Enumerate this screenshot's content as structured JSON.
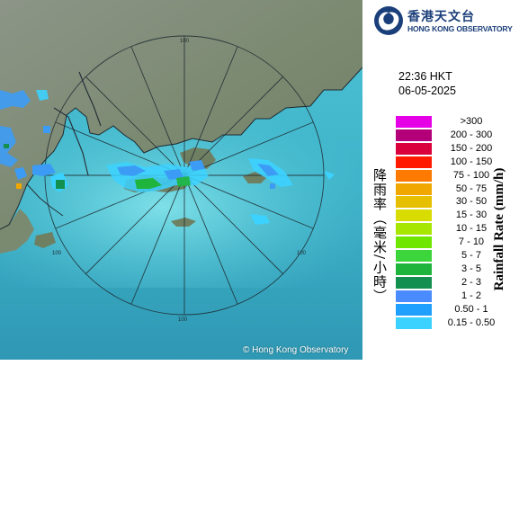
{
  "logo": {
    "chinese_name": "香港天文台",
    "english_name": "HONG KONG OBSERVATORY"
  },
  "timestamp": {
    "time": "22:36 HKT",
    "date": "06-05-2025"
  },
  "legend": {
    "chinese_label": "降雨率（毫米/小時）",
    "english_label": "Rainfall Rate (mm/h)",
    "items": [
      {
        "range": ">300",
        "color": "#e600e6"
      },
      {
        "range": "200 - 300",
        "color": "#b30079"
      },
      {
        "range": "150 - 200",
        "color": "#d9003b"
      },
      {
        "range": "100 - 150",
        "color": "#ff1a00"
      },
      {
        "range": "75 - 100",
        "color": "#ff7a00"
      },
      {
        "range": "50 - 75",
        "color": "#f0a800"
      },
      {
        "range": "30 - 50",
        "color": "#e6c000"
      },
      {
        "range": "15 - 30",
        "color": "#d9dc00"
      },
      {
        "range": "10 - 15",
        "color": "#a6e600"
      },
      {
        "range": "7 - 10",
        "color": "#6fe600"
      },
      {
        "range": "5 - 7",
        "color": "#3cd63c"
      },
      {
        "range": "3 - 5",
        "color": "#1fb43c"
      },
      {
        "range": "2 - 3",
        "color": "#138f4f"
      },
      {
        "range": "1 - 2",
        "color": "#4a8cff"
      },
      {
        "range": "0.50 - 1",
        "color": "#1fa0ff"
      },
      {
        "range": "0.15 - 0.50",
        "color": "#3cd2ff"
      }
    ]
  },
  "map": {
    "range_ring_labels": [
      "100",
      "100",
      "100",
      "100"
    ],
    "copyright": "© Hong Kong Observatory"
  }
}
